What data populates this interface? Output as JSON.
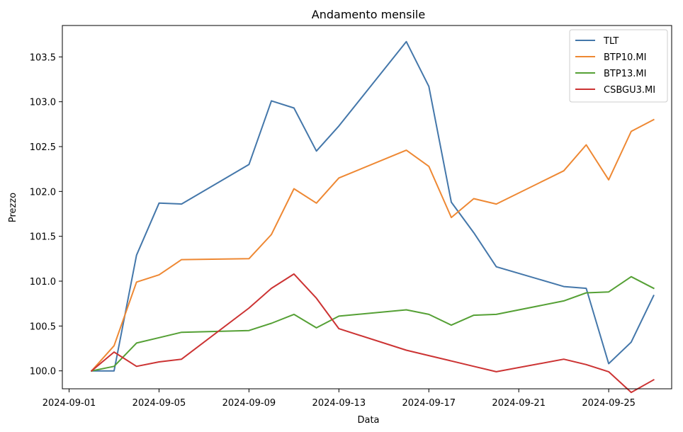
{
  "chart_data": {
    "type": "line",
    "title": "Andamento mensile",
    "xlabel": "Data",
    "ylabel": "Prezzo",
    "x_axis_type": "date",
    "x_ticks": [
      "2024-09-01",
      "2024-09-05",
      "2024-09-09",
      "2024-09-13",
      "2024-09-17",
      "2024-09-21",
      "2024-09-25"
    ],
    "y_ticks": [
      100.0,
      100.5,
      101.0,
      101.5,
      102.0,
      102.5,
      103.0,
      103.5
    ],
    "xlim": [
      "2024-09-01",
      "2024-09-27"
    ],
    "ylim": [
      99.8,
      103.85
    ],
    "grid": false,
    "legend_position": "top-right",
    "series": [
      {
        "name": "TLT",
        "color": "#4477aa",
        "x": [
          "2024-09-02",
          "2024-09-03",
          "2024-09-04",
          "2024-09-05",
          "2024-09-06",
          "2024-09-09",
          "2024-09-10",
          "2024-09-11",
          "2024-09-12",
          "2024-09-13",
          "2024-09-16",
          "2024-09-17",
          "2024-09-18",
          "2024-09-19",
          "2024-09-20",
          "2024-09-23",
          "2024-09-24",
          "2024-09-25",
          "2024-09-26",
          "2024-09-27"
        ],
        "y": [
          100.0,
          100.0,
          101.29,
          101.87,
          101.86,
          102.3,
          103.01,
          102.93,
          102.45,
          102.73,
          103.67,
          103.17,
          101.88,
          101.54,
          101.16,
          100.94,
          100.92,
          100.08,
          100.32,
          100.84
        ]
      },
      {
        "name": "BTP10.MI",
        "color": "#ee8833",
        "x": [
          "2024-09-02",
          "2024-09-03",
          "2024-09-04",
          "2024-09-05",
          "2024-09-06",
          "2024-09-09",
          "2024-09-10",
          "2024-09-11",
          "2024-09-12",
          "2024-09-13",
          "2024-09-16",
          "2024-09-17",
          "2024-09-18",
          "2024-09-19",
          "2024-09-20",
          "2024-09-23",
          "2024-09-24",
          "2024-09-25",
          "2024-09-26",
          "2024-09-27"
        ],
        "y": [
          100.0,
          100.28,
          100.99,
          101.07,
          101.24,
          101.25,
          101.52,
          102.03,
          101.87,
          102.15,
          102.46,
          102.28,
          101.71,
          101.92,
          101.86,
          102.23,
          102.52,
          102.13,
          102.67,
          102.8
        ]
      },
      {
        "name": "BTP13.MI",
        "color": "#55a035",
        "x": [
          "2024-09-02",
          "2024-09-03",
          "2024-09-04",
          "2024-09-05",
          "2024-09-06",
          "2024-09-09",
          "2024-09-10",
          "2024-09-11",
          "2024-09-12",
          "2024-09-13",
          "2024-09-16",
          "2024-09-17",
          "2024-09-18",
          "2024-09-19",
          "2024-09-20",
          "2024-09-23",
          "2024-09-24",
          "2024-09-25",
          "2024-09-26",
          "2024-09-27"
        ],
        "y": [
          100.0,
          100.05,
          100.31,
          100.37,
          100.43,
          100.45,
          100.53,
          100.63,
          100.48,
          100.61,
          100.68,
          100.63,
          100.51,
          100.62,
          100.63,
          100.78,
          100.87,
          100.88,
          101.05,
          100.92
        ]
      },
      {
        "name": "CSBGU3.MI",
        "color": "#cc3333",
        "x": [
          "2024-09-02",
          "2024-09-03",
          "2024-09-04",
          "2024-09-05",
          "2024-09-06",
          "2024-09-09",
          "2024-09-10",
          "2024-09-11",
          "2024-09-12",
          "2024-09-13",
          "2024-09-16",
          "2024-09-17",
          "2024-09-18",
          "2024-09-19",
          "2024-09-20",
          "2024-09-23",
          "2024-09-24",
          "2024-09-25",
          "2024-09-26",
          "2024-09-27"
        ],
        "y": [
          100.0,
          100.21,
          100.05,
          100.1,
          100.13,
          100.7,
          100.92,
          101.08,
          100.81,
          100.47,
          100.23,
          100.17,
          100.11,
          100.05,
          99.99,
          100.13,
          100.07,
          99.99,
          99.76,
          99.9
        ]
      }
    ]
  }
}
